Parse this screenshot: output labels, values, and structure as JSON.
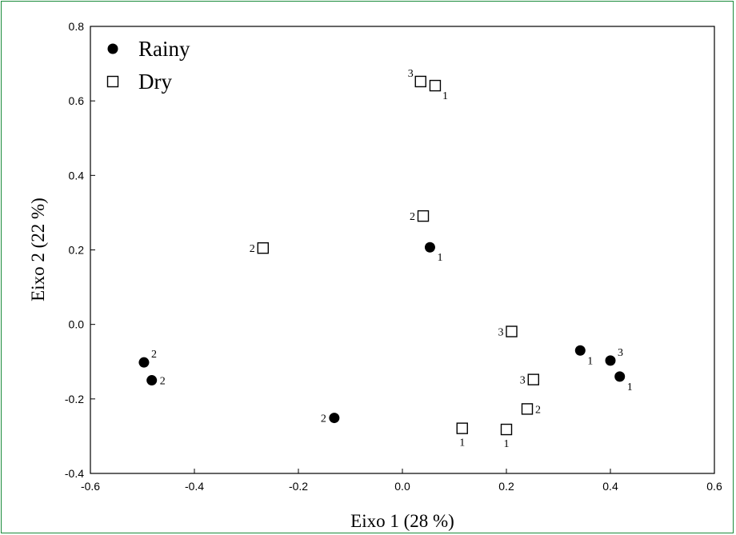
{
  "chart_data": {
    "type": "scatter",
    "xlabel": "Eixo 1 (28 %)",
    "ylabel": "Eixo 2 (22 %)",
    "xlim": [
      -0.6,
      0.6
    ],
    "ylim": [
      -0.4,
      0.8
    ],
    "xticks": [
      "-0.6",
      "-0.4",
      "-0.2",
      "0.0",
      "0.2",
      "0.4",
      "0.6"
    ],
    "yticks": [
      "-0.4",
      "-0.2",
      "0.0",
      "0.2",
      "0.4",
      "0.6",
      "0.8"
    ],
    "xtick_values": [
      -0.6,
      -0.4,
      -0.2,
      0.0,
      0.2,
      0.4,
      0.6
    ],
    "ytick_values": [
      -0.4,
      -0.2,
      0.0,
      0.2,
      0.4,
      0.6,
      0.8
    ],
    "grid": false,
    "legend_position": "top-left",
    "series": [
      {
        "name": "Rainy",
        "marker": "filled-circle",
        "color": "#000000",
        "points": [
          {
            "x": 0.053,
            "y": 0.207,
            "label": "1",
            "label_pos": "below-right"
          },
          {
            "x": -0.497,
            "y": -0.102,
            "label": "2",
            "label_pos": "above-right"
          },
          {
            "x": -0.482,
            "y": -0.15,
            "label": "2",
            "label_pos": "right"
          },
          {
            "x": -0.131,
            "y": -0.251,
            "label": "2",
            "label_pos": "left"
          },
          {
            "x": 0.342,
            "y": -0.07,
            "label": "1",
            "label_pos": "below-right"
          },
          {
            "x": 0.4,
            "y": -0.097,
            "label": "3",
            "label_pos": "above-right"
          },
          {
            "x": 0.418,
            "y": -0.14,
            "label": "1",
            "label_pos": "below-right"
          }
        ]
      },
      {
        "name": "Dry",
        "marker": "open-square",
        "color": "#000000",
        "points": [
          {
            "x": 0.035,
            "y": 0.652,
            "label": "3",
            "label_pos": "above-left"
          },
          {
            "x": 0.063,
            "y": 0.641,
            "label": "1",
            "label_pos": "below-right"
          },
          {
            "x": 0.04,
            "y": 0.291,
            "label": "2",
            "label_pos": "left"
          },
          {
            "x": -0.268,
            "y": 0.205,
            "label": "2",
            "label_pos": "left"
          },
          {
            "x": 0.21,
            "y": -0.019,
            "label": "3",
            "label_pos": "left"
          },
          {
            "x": 0.252,
            "y": -0.148,
            "label": "3",
            "label_pos": "left"
          },
          {
            "x": 0.24,
            "y": -0.227,
            "label": "2",
            "label_pos": "right"
          },
          {
            "x": 0.115,
            "y": -0.279,
            "label": "1",
            "label_pos": "below"
          },
          {
            "x": 0.2,
            "y": -0.282,
            "label": "1",
            "label_pos": "below"
          }
        ]
      }
    ]
  }
}
